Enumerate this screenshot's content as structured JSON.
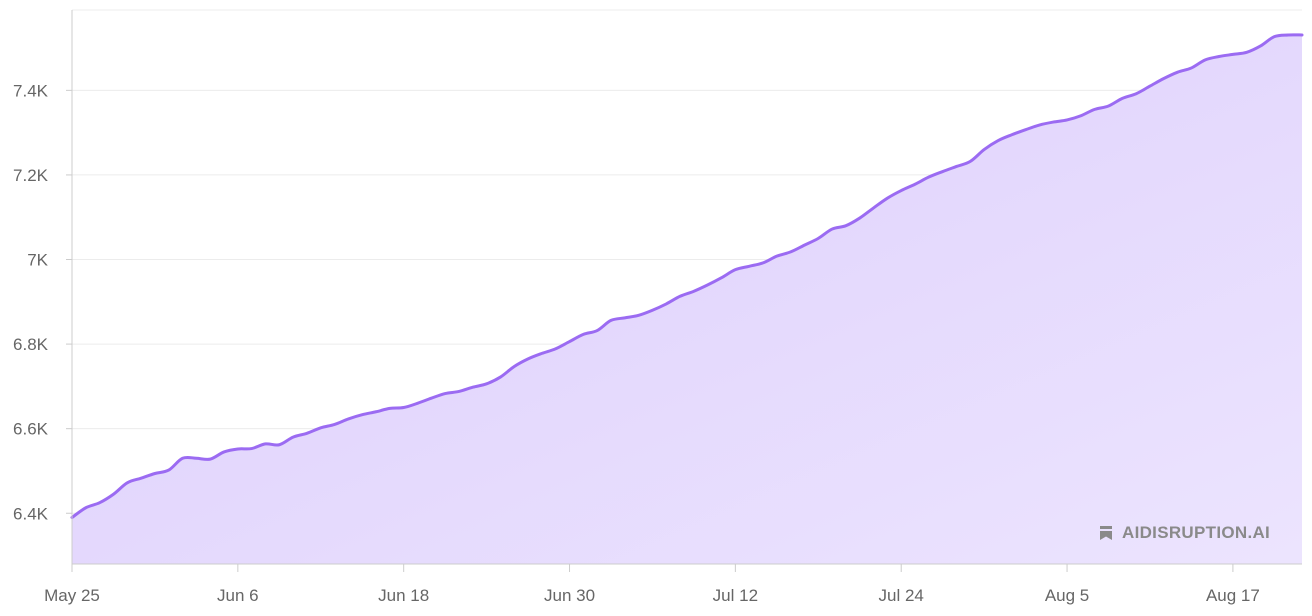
{
  "chart_data": {
    "type": "area",
    "title": "",
    "xlabel": "",
    "ylabel": "",
    "x_tick_labels": [
      "May 25",
      "Jun 6",
      "Jun 18",
      "Jun 30",
      "Jul 12",
      "Jul 24",
      "Aug 5",
      "Aug 17"
    ],
    "y_tick_labels": [
      "6.4K",
      "6.6K",
      "6.8K",
      "7K",
      "7.2K",
      "7.4K"
    ],
    "y_ticks": [
      6400,
      6600,
      6800,
      7000,
      7200,
      7400
    ],
    "ylim": [
      6280,
      7590
    ],
    "xlim": [
      "2024-05-25",
      "2024-08-22"
    ],
    "grid": true,
    "series": [
      {
        "color": "#9b6bf2",
        "fill": "#e2d6fd",
        "x": [
          "2024-05-25",
          "2024-05-26",
          "2024-05-27",
          "2024-05-28",
          "2024-05-29",
          "2024-05-30",
          "2024-05-31",
          "2024-06-01",
          "2024-06-02",
          "2024-06-03",
          "2024-06-04",
          "2024-06-05",
          "2024-06-06",
          "2024-06-07",
          "2024-06-08",
          "2024-06-09",
          "2024-06-10",
          "2024-06-11",
          "2024-06-12",
          "2024-06-13",
          "2024-06-14",
          "2024-06-15",
          "2024-06-16",
          "2024-06-17",
          "2024-06-18",
          "2024-06-19",
          "2024-06-20",
          "2024-06-21",
          "2024-06-22",
          "2024-06-23",
          "2024-06-24",
          "2024-06-25",
          "2024-06-26",
          "2024-06-27",
          "2024-06-28",
          "2024-06-29",
          "2024-06-30",
          "2024-07-01",
          "2024-07-02",
          "2024-07-03",
          "2024-07-04",
          "2024-07-05",
          "2024-07-06",
          "2024-07-07",
          "2024-07-08",
          "2024-07-09",
          "2024-07-10",
          "2024-07-11",
          "2024-07-12",
          "2024-07-13",
          "2024-07-14",
          "2024-07-15",
          "2024-07-16",
          "2024-07-17",
          "2024-07-18",
          "2024-07-19",
          "2024-07-20",
          "2024-07-21",
          "2024-07-22",
          "2024-07-23",
          "2024-07-24",
          "2024-07-25",
          "2024-07-26",
          "2024-07-27",
          "2024-07-28",
          "2024-07-29",
          "2024-07-30",
          "2024-07-31",
          "2024-08-01",
          "2024-08-02",
          "2024-08-03",
          "2024-08-04",
          "2024-08-05",
          "2024-08-06",
          "2024-08-07",
          "2024-08-08",
          "2024-08-09",
          "2024-08-10",
          "2024-08-11",
          "2024-08-12",
          "2024-08-13",
          "2024-08-14",
          "2024-08-15",
          "2024-08-16",
          "2024-08-17",
          "2024-08-18",
          "2024-08-19",
          "2024-08-20",
          "2024-08-21",
          "2024-08-22"
        ],
        "values": [
          6390,
          6413,
          6425,
          6445,
          6472,
          6483,
          6494,
          6502,
          6530,
          6530,
          6528,
          6545,
          6552,
          6553,
          6564,
          6562,
          6580,
          6589,
          6602,
          6610,
          6623,
          6633,
          6640,
          6648,
          6650,
          6660,
          6672,
          6683,
          6688,
          6698,
          6706,
          6722,
          6747,
          6765,
          6778,
          6789,
          6806,
          6823,
          6832,
          6856,
          6862,
          6868,
          6880,
          6895,
          6913,
          6925,
          6940,
          6957,
          6976,
          6984,
          6992,
          7008,
          7018,
          7034,
          7050,
          7072,
          7080,
          7098,
          7122,
          7145,
          7163,
          7178,
          7195,
          7208,
          7220,
          7232,
          7260,
          7281,
          7295,
          7307,
          7318,
          7325,
          7330,
          7340,
          7355,
          7363,
          7381,
          7392,
          7410,
          7428,
          7443,
          7453,
          7472,
          7480,
          7485,
          7490,
          7505,
          7527,
          7531,
          7531
        ]
      }
    ],
    "watermark": "AIDISRUPTION.AI"
  }
}
